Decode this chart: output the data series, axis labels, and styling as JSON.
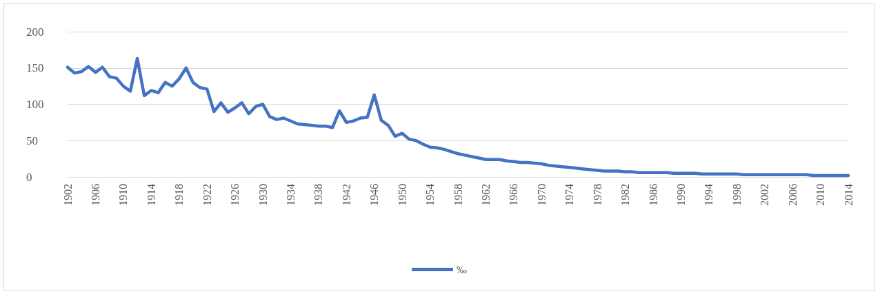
{
  "chart_data": {
    "type": "line",
    "categories": [
      "1902",
      null,
      null,
      null,
      "1906",
      null,
      null,
      null,
      "1910",
      null,
      null,
      null,
      "1914",
      null,
      null,
      null,
      "1918",
      null,
      null,
      null,
      "1922",
      null,
      null,
      null,
      "1926",
      null,
      null,
      null,
      "1930",
      null,
      null,
      null,
      "1934",
      null,
      null,
      null,
      "1938",
      null,
      null,
      null,
      "1942",
      null,
      null,
      null,
      "1946",
      null,
      null,
      null,
      "1950",
      null,
      null,
      null,
      "1954",
      null,
      null,
      null,
      "1958",
      null,
      null,
      null,
      "1962",
      null,
      null,
      null,
      "1966",
      null,
      null,
      null,
      "1970",
      null,
      null,
      null,
      "1974",
      null,
      null,
      null,
      "1978",
      null,
      null,
      null,
      "1982",
      null,
      null,
      null,
      "1986",
      null,
      null,
      null,
      "1990",
      null,
      null,
      null,
      "1994",
      null,
      null,
      null,
      "1998",
      null,
      null,
      null,
      "2002",
      null,
      null,
      null,
      "2006",
      null,
      null,
      null,
      "2010",
      null,
      null,
      null,
      "2014"
    ],
    "series": [
      {
        "name": "‰",
        "color": "#4472c4",
        "values": [
          151,
          143,
          145,
          152,
          144,
          151,
          138,
          136,
          125,
          118,
          163,
          112,
          119,
          116,
          130,
          125,
          135,
          150,
          130,
          123,
          121,
          90,
          102,
          89,
          95,
          102,
          87,
          97,
          100,
          83,
          79,
          81,
          77,
          73,
          72,
          71,
          70,
          70,
          68,
          91,
          75,
          77,
          81,
          82,
          113,
          78,
          71,
          56,
          60,
          52,
          50,
          45,
          41,
          40,
          38,
          35,
          32,
          30,
          28,
          26,
          24,
          24,
          24,
          22,
          21,
          20,
          20,
          19,
          18,
          16,
          15,
          14,
          13,
          12,
          11,
          10,
          9,
          8,
          8,
          8,
          7,
          7,
          6,
          6,
          6,
          6,
          6,
          5,
          5,
          5,
          5,
          4,
          4,
          4,
          4,
          4,
          4,
          3,
          3,
          3,
          3,
          3,
          3,
          3,
          3,
          3,
          3,
          2,
          2,
          2,
          2,
          2,
          2
        ]
      }
    ],
    "ylim": [
      0,
      200
    ],
    "yticks": [
      0,
      50,
      100,
      150,
      200
    ],
    "grid": "y",
    "legend": "bottom",
    "marker": "none",
    "line_style": "solid"
  }
}
